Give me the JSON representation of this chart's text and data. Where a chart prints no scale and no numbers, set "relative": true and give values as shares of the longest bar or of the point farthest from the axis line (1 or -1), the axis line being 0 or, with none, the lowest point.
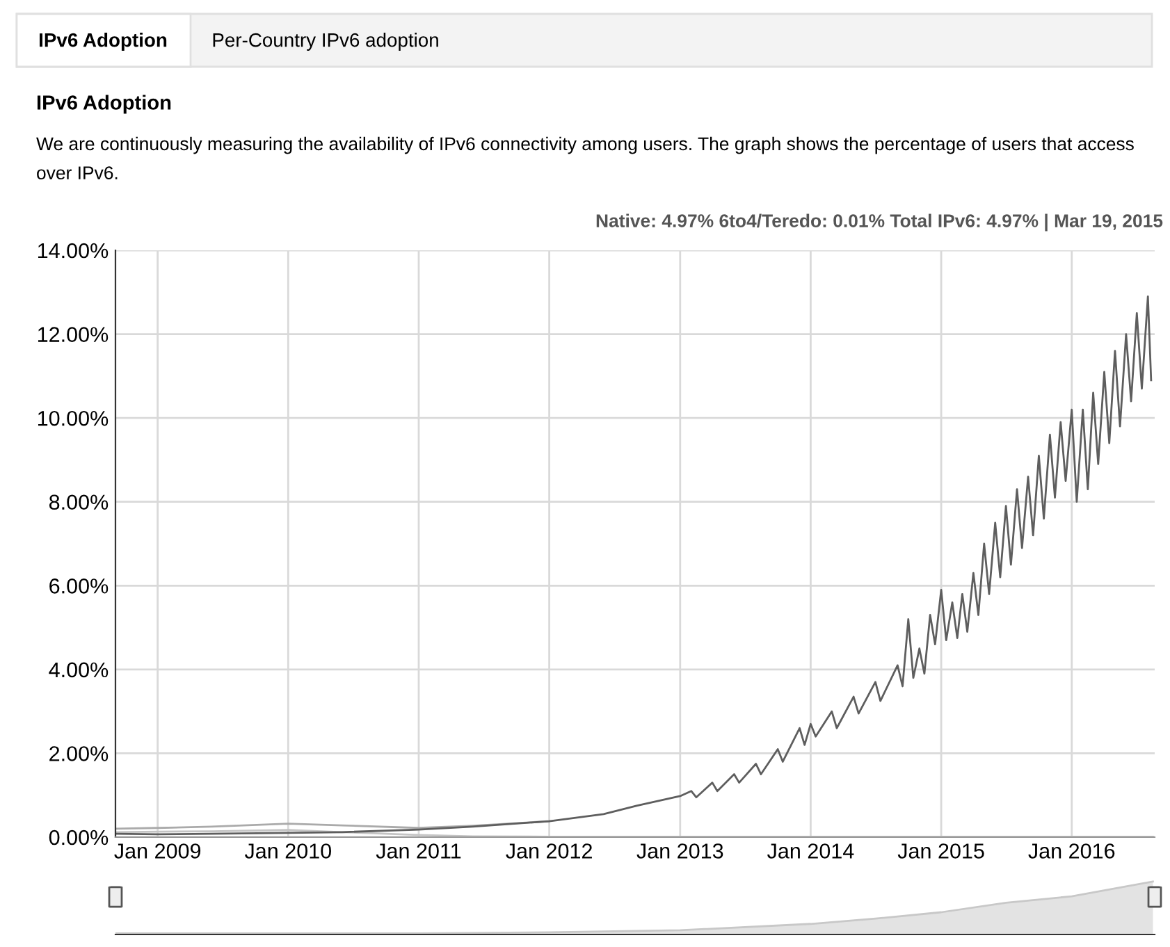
{
  "chart_data": [
    {
      "type": "line",
      "title": "IPv6 Adoption",
      "subtitle": "We are continuously measuring the availability of IPv6 connectivity among users. The graph shows the percentage of users that access over IPv6.",
      "annotations": [
        "IPv6 Adoption",
        "Per-Country IPv6 adoption",
        "Native: 4.97% 6to4/Teredo: 0.01% Total IPv6: 4.97% | Mar 19, 2015"
      ],
      "series": [
        {
          "color": "#c4c4c4",
          "x": [
            "2008-09-05",
            "2009-01-01",
            "2009-06-01",
            "2010-01-01",
            "2010-06-01",
            "2011-01-01",
            "2011-06-01",
            "2012-01-01",
            "2013-01-01",
            "2014-01-01",
            "2015-01-01",
            "2016-01-01",
            "2016-08-15"
          ],
          "values": [
            0.12,
            0.13,
            0.14,
            0.17,
            0.12,
            0.05,
            0.02,
            0.01,
            0.01,
            0.01,
            0.01,
            0.01,
            0.01
          ]
        },
        {
          "color": "#aaaaaa",
          "x": [
            "2008-09-05",
            "2009-01-01",
            "2009-06-01",
            "2010-01-01",
            "2010-06-01",
            "2011-01-01",
            "2011-06-01",
            "2012-01-01"
          ],
          "values": [
            0.2,
            0.22,
            0.25,
            0.32,
            0.28,
            0.22,
            0.27,
            0.38
          ]
        },
        {
          "color": "#5e5e5e",
          "x": [
            "2008-09-05",
            "2009-01-01",
            "2009-06-01",
            "2010-01-01",
            "2010-06-01",
            "2011-01-01",
            "2011-06-01",
            "2012-01-01",
            "2012-06-01",
            "2012-09-01",
            "2013-01-01",
            "2013-02-01",
            "2013-02-15",
            "2013-04-01",
            "2013-04-15",
            "2013-06-01",
            "2013-06-15",
            "2013-08-01",
            "2013-08-15",
            "2013-10-01",
            "2013-10-15",
            "2013-12-01",
            "2013-12-15",
            "2014-01-01",
            "2014-01-15",
            "2014-03-01",
            "2014-03-15",
            "2014-05-01",
            "2014-05-15",
            "2014-07-01",
            "2014-07-15",
            "2014-09-01",
            "2014-09-15",
            "2014-10-01",
            "2014-10-15",
            "2014-11-01",
            "2014-11-15",
            "2014-12-01",
            "2014-12-15",
            "2015-01-01",
            "2015-01-15",
            "2015-02-01",
            "2015-02-15",
            "2015-03-01",
            "2015-03-15",
            "2015-04-01",
            "2015-04-15",
            "2015-05-01",
            "2015-05-15",
            "2015-06-01",
            "2015-06-15",
            "2015-07-01",
            "2015-07-15",
            "2015-08-01",
            "2015-08-15",
            "2015-09-01",
            "2015-09-15",
            "2015-10-01",
            "2015-10-15",
            "2015-11-01",
            "2015-11-15",
            "2015-12-01",
            "2015-12-15",
            "2016-01-01",
            "2016-01-15",
            "2016-02-01",
            "2016-02-15",
            "2016-03-01",
            "2016-03-15",
            "2016-04-01",
            "2016-04-15",
            "2016-05-01",
            "2016-05-15",
            "2016-06-01",
            "2016-06-15",
            "2016-07-01",
            "2016-07-15",
            "2016-08-01",
            "2016-08-10"
          ],
          "values": [
            0.08,
            0.07,
            0.08,
            0.1,
            0.12,
            0.18,
            0.25,
            0.38,
            0.55,
            0.75,
            0.98,
            1.1,
            0.95,
            1.3,
            1.1,
            1.5,
            1.3,
            1.75,
            1.5,
            2.1,
            1.8,
            2.6,
            2.2,
            2.7,
            2.4,
            3.0,
            2.6,
            3.35,
            2.95,
            3.7,
            3.25,
            4.1,
            3.6,
            5.2,
            3.8,
            4.5,
            3.9,
            5.3,
            4.6,
            5.9,
            4.7,
            5.6,
            4.75,
            5.8,
            4.9,
            6.3,
            5.3,
            7.0,
            5.8,
            7.5,
            6.2,
            7.9,
            6.5,
            8.3,
            6.9,
            8.6,
            7.2,
            9.1,
            7.6,
            9.6,
            8.1,
            9.9,
            8.5,
            10.2,
            8.0,
            10.2,
            8.3,
            10.6,
            8.9,
            11.1,
            9.4,
            11.6,
            9.8,
            12.0,
            10.4,
            12.5,
            10.7,
            12.9,
            10.9
          ]
        }
      ],
      "xlim": [
        "2008-09-05",
        "2016-08-20"
      ],
      "xticks": [
        {
          "value": "2009-01",
          "label": "Jan 2009"
        },
        {
          "value": "2010-01",
          "label": "Jan 2010"
        },
        {
          "value": "2011-01",
          "label": "Jan 2011"
        },
        {
          "value": "2012-01",
          "label": "Jan 2012"
        },
        {
          "value": "2013-01",
          "label": "Jan 2013"
        },
        {
          "value": "2014-01",
          "label": "Jan 2014"
        },
        {
          "value": "2015-01",
          "label": "Jan 2015"
        },
        {
          "value": "2016-01",
          "label": "Jan 2016"
        }
      ],
      "ylim": [
        0,
        14
      ],
      "yticks": [
        {
          "value": 0,
          "label": "0.00%"
        },
        {
          "value": 2,
          "label": "2.00%"
        },
        {
          "value": 4,
          "label": "4.00%"
        },
        {
          "value": 6,
          "label": "6.00%"
        },
        {
          "value": 8,
          "label": "8.00%"
        },
        {
          "value": 10,
          "label": "10.00%"
        },
        {
          "value": 12,
          "label": "12.00%"
        },
        {
          "value": 14,
          "label": "14.00%"
        }
      ],
      "grid": true,
      "line_style": "solid"
    },
    {
      "type": "area",
      "relative": true,
      "color": "#c8c8c8",
      "x": [
        "2008-09-05",
        "2011-01-01",
        "2012-01-01",
        "2013-01-01",
        "2014-01-01",
        "2014-07-01",
        "2015-01-01",
        "2015-07-01",
        "2016-01-01",
        "2016-08-15"
      ],
      "values": [
        0.02,
        0.02,
        0.04,
        0.08,
        0.2,
        0.3,
        0.42,
        0.6,
        0.72,
        1.0
      ],
      "xlim": [
        "2008-09-05",
        "2016-08-20"
      ],
      "tick_labels": false
    }
  ]
}
